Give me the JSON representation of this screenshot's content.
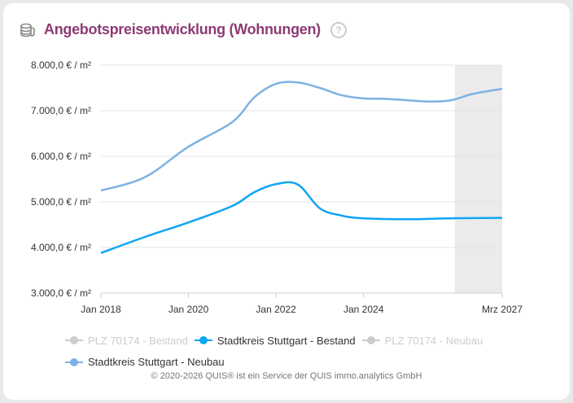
{
  "header": {
    "title": "Angebotspreisentwicklung (Wohnungen)",
    "icon": "coins-icon",
    "help_icon": "question-circle-icon",
    "help_label": "?"
  },
  "chart_data": {
    "type": "line",
    "xlabel": "",
    "ylabel": "",
    "ylim": [
      3000,
      8000
    ],
    "yticks": [
      3000,
      4000,
      5000,
      6000,
      7000,
      8000
    ],
    "ytick_labels": [
      "3.000,0 € / m²",
      "4.000,0 € / m²",
      "5.000,0 € / m²",
      "6.000,0 € / m²",
      "7.000,0 € / m²",
      "8.000,0 € / m²"
    ],
    "xlim": [
      "2018-01",
      "2027-03"
    ],
    "xticks": [
      "2018-01",
      "2020-01",
      "2022-01",
      "2024-01",
      "2027-03"
    ],
    "xtick_labels": [
      "Jan 2018",
      "Jan 2020",
      "Jan 2022",
      "Jan 2024",
      "Mrz 2027"
    ],
    "shaded_range": [
      "2026-02",
      "2027-03"
    ],
    "grid": true,
    "legend_position": "bottom",
    "series": [
      {
        "name": "PLZ 70174 - Bestand",
        "color": "#cccccc",
        "visible": false,
        "x": [],
        "values": []
      },
      {
        "name": "Stadtkreis Stuttgart - Bestand",
        "color": "#0ea5f5",
        "visible": true,
        "x": [
          "2018-01",
          "2019-01",
          "2020-01",
          "2021-01",
          "2021-07",
          "2022-01",
          "2022-07",
          "2023-01",
          "2023-07",
          "2024-01",
          "2025-01",
          "2026-01",
          "2027-03"
        ],
        "values": [
          3880,
          4230,
          4550,
          4910,
          5210,
          5390,
          5380,
          4860,
          4700,
          4640,
          4620,
          4640,
          4650
        ]
      },
      {
        "name": "PLZ 70174 - Neubau",
        "color": "#cccccc",
        "visible": false,
        "x": [],
        "values": []
      },
      {
        "name": "Stadtkreis Stuttgart - Neubau",
        "color": "#7eb2e4",
        "visible": true,
        "x": [
          "2018-01",
          "2019-01",
          "2020-01",
          "2021-01",
          "2021-07",
          "2022-01",
          "2022-07",
          "2023-01",
          "2023-07",
          "2024-01",
          "2024-07",
          "2025-01",
          "2025-07",
          "2026-01",
          "2026-07",
          "2027-03"
        ],
        "values": [
          5250,
          5540,
          6210,
          6750,
          7290,
          7590,
          7620,
          7500,
          7340,
          7270,
          7260,
          7230,
          7200,
          7230,
          7370,
          7480
        ]
      }
    ]
  },
  "footer": {
    "copyright": "© 2020-2026 QUIS® ist ein Service der QUIS immo.analytics GmbH"
  }
}
